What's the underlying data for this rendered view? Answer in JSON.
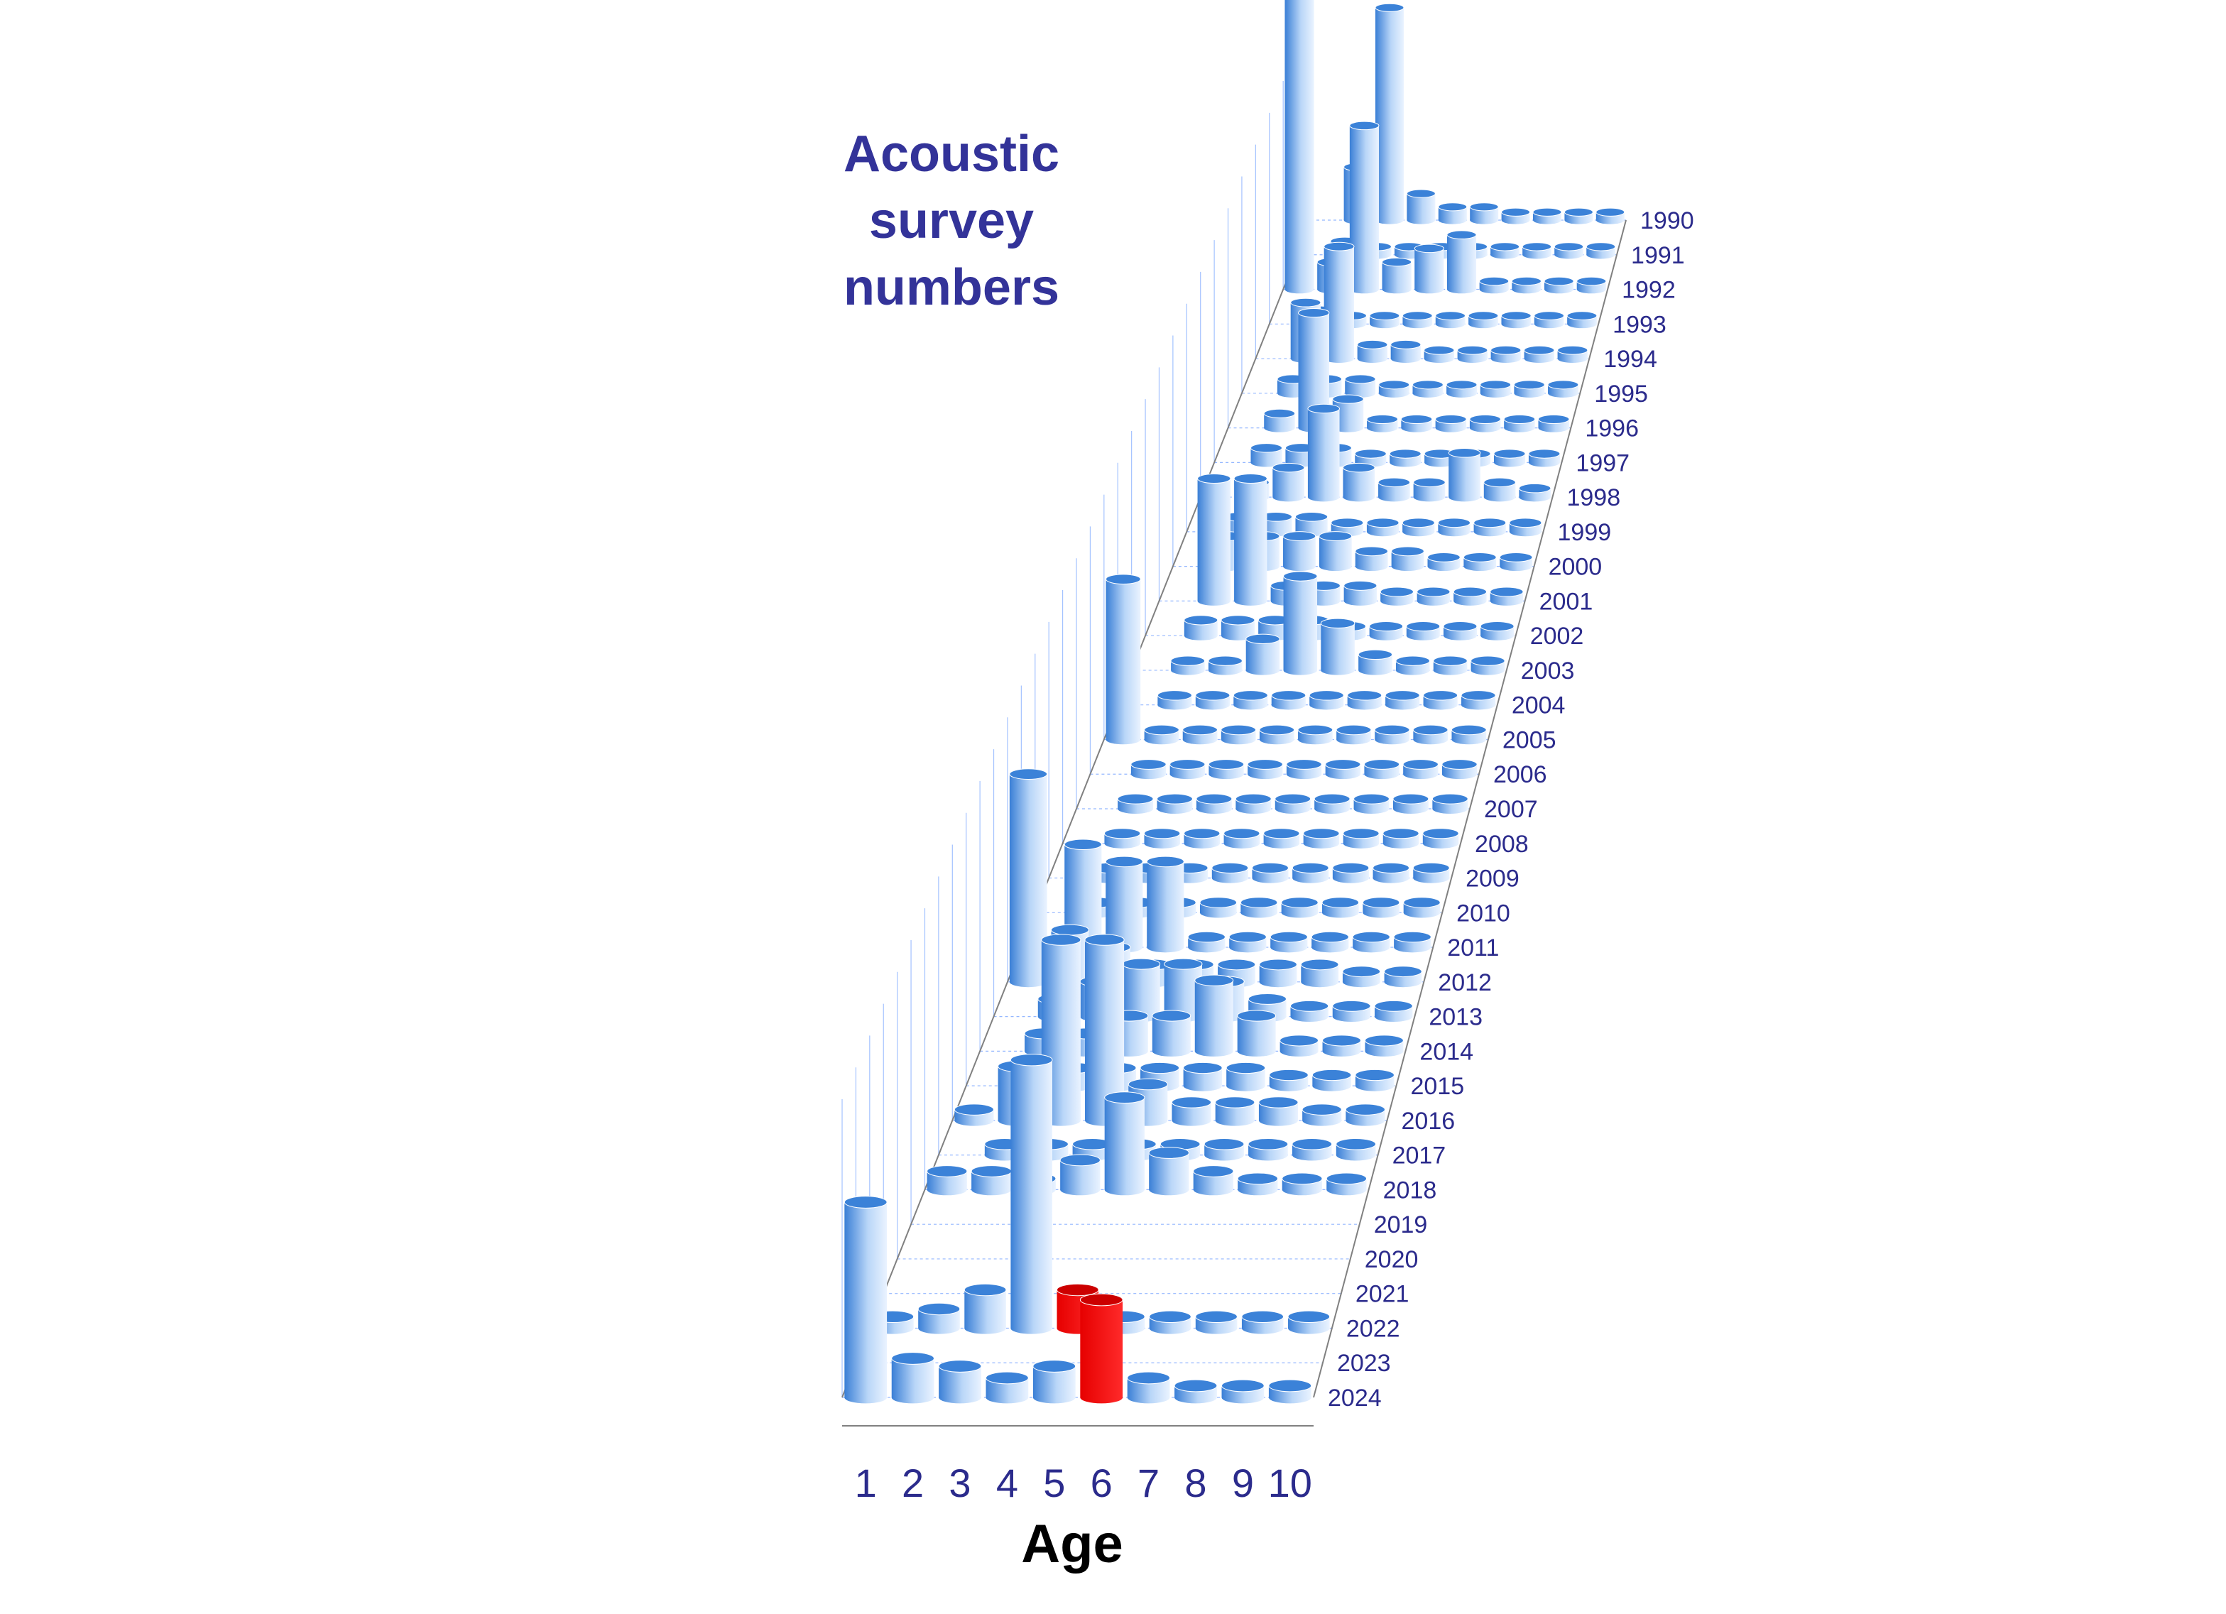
{
  "chart_data": {
    "type": "bar",
    "title_lines": [
      "Acoustic",
      "survey",
      "numbers"
    ],
    "xlabel": "Age",
    "ages": [
      "1",
      "2",
      "3",
      "4",
      "5",
      "6",
      "7",
      "8",
      "9",
      "10"
    ],
    "years": [
      "1990",
      "1991",
      "1992",
      "1993",
      "1994",
      "1995",
      "1996",
      "1997",
      "1998",
      "1999",
      "2000",
      "2001",
      "2002",
      "2003",
      "2004",
      "2005",
      "2006",
      "2007",
      "2008",
      "2009",
      "2010",
      "2011",
      "2012",
      "2013",
      "2014",
      "2015",
      "2016",
      "2017",
      "2018",
      "2019",
      "2020",
      "2021",
      "2022",
      "2023",
      "2024"
    ],
    "rows": [
      {
        "year": "1990",
        "values": [
          0,
          2,
          8,
          1,
          0.5,
          0.5,
          0.3,
          0.3,
          0.3,
          0.3
        ]
      },
      {
        "year": "1991",
        "values": [
          0,
          0.5,
          0.3,
          0.3,
          0.3,
          0.3,
          0.3,
          0.3,
          0.3,
          0.3
        ]
      },
      {
        "year": "1992",
        "values": [
          18,
          1,
          6,
          1,
          1.5,
          2,
          0.3,
          0.3,
          0.3,
          0.3
        ]
      },
      {
        "year": "1993",
        "values": [
          0,
          0.5,
          0.3,
          0.3,
          0.3,
          0.3,
          0.3,
          0.3,
          0.3,
          0.3
        ]
      },
      {
        "year": "1994",
        "values": [
          0,
          2,
          4,
          0.5,
          0.5,
          0.3,
          0.3,
          0.3,
          0.3,
          0.3
        ]
      },
      {
        "year": "1995",
        "values": [
          0,
          0.5,
          0.5,
          0.5,
          0.3,
          0.3,
          0.3,
          0.3,
          0.3,
          0.3
        ]
      },
      {
        "year": "1996",
        "values": [
          0,
          0.5,
          4,
          1,
          0.3,
          0.3,
          0.3,
          0.3,
          0.3,
          0.3
        ]
      },
      {
        "year": "1997",
        "values": [
          0,
          0.5,
          0.5,
          0.5,
          0.3,
          0.3,
          0.3,
          0.3,
          0.3,
          0.3
        ]
      },
      {
        "year": "1998",
        "values": [
          0,
          0.5,
          1,
          3,
          1,
          0.5,
          0.5,
          1.5,
          0.5,
          0.3
        ]
      },
      {
        "year": "1999",
        "values": [
          0,
          0.5,
          0.5,
          0.5,
          0.3,
          0.3,
          0.3,
          0.3,
          0.3,
          0.3
        ]
      },
      {
        "year": "2000",
        "values": [
          0,
          1,
          1,
          1,
          1,
          0.5,
          0.5,
          0.3,
          0.3,
          0.3
        ]
      },
      {
        "year": "2001",
        "values": [
          0,
          4,
          4,
          0.5,
          0.5,
          0.5,
          0.3,
          0.3,
          0.3,
          0.3
        ]
      },
      {
        "year": "2002",
        "values": [
          0,
          0.5,
          0.5,
          0.5,
          0.5,
          0.3,
          0.3,
          0.3,
          0.3,
          0.3
        ]
      },
      {
        "year": "2003",
        "values": [
          0,
          0.3,
          0.3,
          1,
          3,
          1.5,
          0.5,
          0.3,
          0.3,
          0.3
        ]
      },
      {
        "year": "2004",
        "values": [
          0,
          0.3,
          0.3,
          0.3,
          0.3,
          0.3,
          0.3,
          0.3,
          0.3,
          0.3
        ]
      },
      {
        "year": "2005",
        "values": [
          5,
          0.3,
          0.3,
          0.3,
          0.3,
          0.3,
          0.3,
          0.3,
          0.3,
          0.3
        ]
      },
      {
        "year": "2006",
        "values": [
          0,
          0.3,
          0.3,
          0.3,
          0.3,
          0.3,
          0.3,
          0.3,
          0.3,
          0.3
        ]
      },
      {
        "year": "2007",
        "values": [
          0,
          0.3,
          0.3,
          0.3,
          0.3,
          0.3,
          0.3,
          0.3,
          0.3,
          0.3
        ]
      },
      {
        "year": "2008",
        "values": [
          0,
          0.3,
          0.3,
          0.3,
          0.3,
          0.3,
          0.3,
          0.3,
          0.3,
          0.3
        ]
      },
      {
        "year": "2009",
        "values": [
          0,
          0.3,
          0.3,
          0.3,
          0.3,
          0.3,
          0.3,
          0.3,
          0.3,
          0.3
        ]
      },
      {
        "year": "2010",
        "values": [
          0,
          0.3,
          0.3,
          0.3,
          0.3,
          0.3,
          0.3,
          0.3,
          0.3,
          0.3
        ]
      },
      {
        "year": "2011",
        "values": [
          0,
          3,
          2.5,
          2.5,
          0.3,
          0.3,
          0.3,
          0.3,
          0.3,
          0.3
        ]
      },
      {
        "year": "2012",
        "values": [
          6,
          1.5,
          1,
          0.5,
          0.5,
          0.5,
          0.5,
          0.5,
          0.3,
          0.3
        ]
      },
      {
        "year": "2013",
        "values": [
          0,
          0.5,
          1,
          1.5,
          1.5,
          1,
          0.5,
          0.3,
          0.3,
          0.3
        ]
      },
      {
        "year": "2014",
        "values": [
          0,
          0.5,
          0.5,
          1,
          1,
          2,
          1,
          0.3,
          0.3,
          0.3
        ]
      },
      {
        "year": "2015",
        "values": [
          0,
          0.5,
          0.5,
          0.5,
          0.5,
          0.5,
          0.5,
          0.3,
          0.3,
          0.3
        ]
      },
      {
        "year": "2016",
        "values": [
          0.3,
          1.5,
          5,
          5,
          1,
          0.5,
          0.5,
          0.5,
          0.3,
          0.3
        ]
      },
      {
        "year": "2017",
        "values": [
          0,
          0.3,
          0.3,
          0.3,
          0.3,
          0.3,
          0.3,
          0.3,
          0.3,
          0.3
        ]
      },
      {
        "year": "2018",
        "values": [
          0.5,
          0.5,
          0.3,
          0.8,
          2.5,
          1,
          0.5,
          0.3,
          0.3,
          0.3
        ]
      },
      {
        "year": "2019",
        "values": [
          0,
          0,
          0,
          0,
          0,
          0,
          0,
          0,
          0,
          0
        ]
      },
      {
        "year": "2020",
        "values": [
          0,
          0,
          0,
          0,
          0,
          0,
          0,
          0,
          0,
          0
        ]
      },
      {
        "year": "2021",
        "values": [
          0,
          0,
          0,
          0,
          0,
          0,
          0,
          0,
          0,
          0
        ]
      },
      {
        "year": "2022",
        "values": [
          0.3,
          0.5,
          1,
          7,
          1,
          0.3,
          0.3,
          0.3,
          0.3,
          0.3
        ]
      },
      {
        "year": "2023",
        "values": [
          0,
          0,
          0,
          0,
          0,
          0,
          0,
          0,
          0,
          0
        ]
      },
      {
        "year": "2024",
        "values": [
          5,
          1,
          0.8,
          0.5,
          0.8,
          2.5,
          0.5,
          0.3,
          0.3,
          0.3
        ]
      }
    ],
    "highlight": [
      {
        "year": "2022",
        "age": "5",
        "color": "#e60000"
      },
      {
        "year": "2024",
        "age": "6",
        "color": "#e60000"
      }
    ],
    "colors": {
      "bar": "#4a90e2",
      "highlight": "#e60000",
      "grid": "#6699ff",
      "axis": "#808080"
    }
  }
}
